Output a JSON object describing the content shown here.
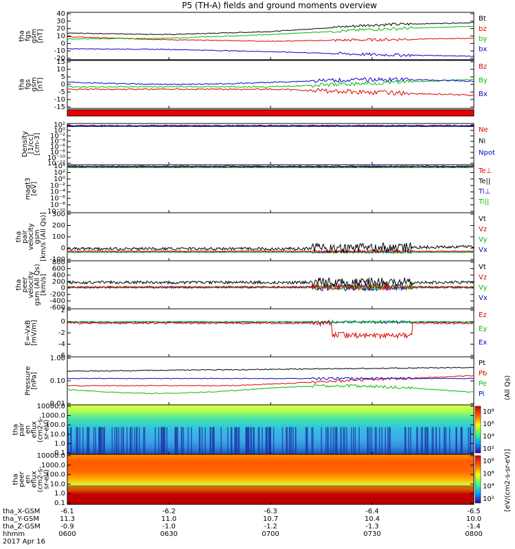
{
  "title": "P5 (TH-A) fields and ground moments overview",
  "panels": [
    {
      "ylabel": [
        "tha",
        "fgs",
        "gsm",
        "[nT]"
      ],
      "yticks": [
        "40",
        "30",
        "20",
        "10",
        "0",
        "-10",
        "-20"
      ],
      "legend": [
        {
          "text": "Bt",
          "color": "#000000"
        },
        {
          "text": "bz",
          "color": "#dd0000"
        },
        {
          "text": "by",
          "color": "#00bb00"
        },
        {
          "text": "bx",
          "color": "#0000cc"
        }
      ]
    },
    {
      "ylabel": [
        "tha",
        "fgs",
        "gsm",
        "[nT]"
      ],
      "yticks": [
        "15",
        "10",
        "5",
        "0",
        "-5",
        "-10",
        "-15"
      ],
      "legend": [
        {
          "text": "Bz",
          "color": "#dd0000"
        },
        {
          "text": "By",
          "color": "#00bb00"
        },
        {
          "text": "Bx",
          "color": "#0000cc"
        }
      ]
    },
    {
      "ylabel": [
        "Density",
        "[1/cc]",
        "[cm-3]"
      ],
      "yticks": [
        "10²",
        "10⁰",
        "10⁻²",
        "10⁻⁴",
        "10⁻⁶",
        "10⁻⁸",
        "10⁻¹⁰",
        "10⁻¹²"
      ],
      "legend": [
        {
          "text": "Ne",
          "color": "#dd0000"
        },
        {
          "text": "Ni",
          "color": "#000000"
        },
        {
          "text": "Npot",
          "color": "#0000cc"
        }
      ]
    },
    {
      "ylabel": [
        "magt3",
        "[eV]"
      ],
      "yticks": [
        "10⁴",
        "10²",
        "10⁰",
        "10⁻²",
        "10⁻⁴",
        "10⁻⁶",
        "10⁻⁸",
        "10⁻¹⁰"
      ],
      "legend": [
        {
          "text": "Te⊥",
          "color": "#dd0000"
        },
        {
          "text": "Te||",
          "color": "#000000"
        },
        {
          "text": "Ti⊥",
          "color": "#0000cc"
        },
        {
          "text": "Ti||",
          "color": "#00bb00"
        }
      ]
    },
    {
      "ylabel": [
        "tha",
        "pair",
        "velocity",
        "gsm",
        "[km/s (All Qs)]"
      ],
      "yticks": [
        "300",
        "200",
        "100",
        "0",
        "-100"
      ],
      "legend": [
        {
          "text": "Vt",
          "color": "#000000"
        },
        {
          "text": "Vz",
          "color": "#dd0000"
        },
        {
          "text": "Vy",
          "color": "#00bb00"
        },
        {
          "text": "Vx",
          "color": "#0000cc"
        }
      ]
    },
    {
      "ylabel": [
        "tha",
        "peer",
        "velocity",
        "gsm (All Qs)",
        "[km/s]"
      ],
      "yticks": [
        "800",
        "600",
        "400",
        "200",
        "0",
        "-200",
        "-400",
        "-600"
      ],
      "legend": [
        {
          "text": "Vt",
          "color": "#000000"
        },
        {
          "text": "Vz",
          "color": "#dd0000"
        },
        {
          "text": "Vy",
          "color": "#00bb00"
        },
        {
          "text": "Vx",
          "color": "#0000cc"
        }
      ]
    },
    {
      "ylabel": [
        "E=-VxB",
        "[mV/m]"
      ],
      "yticks": [
        "2",
        "0",
        "-2",
        "-4",
        "-6"
      ],
      "legend": [
        {
          "text": "Ez",
          "color": "#dd0000"
        },
        {
          "text": "Ey",
          "color": "#00bb00"
        },
        {
          "text": "Ex",
          "color": "#0000cc"
        }
      ]
    },
    {
      "ylabel": [
        "Pressure",
        "[nPa]"
      ],
      "yticks": [
        "1.00",
        "0.10",
        "0.01"
      ],
      "legend": [
        {
          "text": "Pt",
          "color": "#000000"
        },
        {
          "text": "Pb",
          "color": "#dd0000"
        },
        {
          "text": "Pe",
          "color": "#00bb00"
        },
        {
          "text": "Pi",
          "color": "#0000cc"
        }
      ],
      "extra": "(All Qs)"
    },
    {
      "ylabel": [
        "tha",
        "pair",
        "en",
        "eflux",
        "(cm2-s-",
        "sr-eV)"
      ],
      "yticks": [
        "10000.0",
        "1000.0",
        "100.0",
        "10.0",
        "1.0",
        "0.1"
      ],
      "colorbar": [
        "10⁸",
        "10⁶",
        "10⁴",
        "10²"
      ]
    },
    {
      "ylabel": [
        "tha",
        "peer",
        "en",
        "eflux",
        "(cm2-s-",
        "sr-eV)"
      ],
      "yticks": [
        "10000.0",
        "1000.0",
        "100.0",
        "10.0",
        "1.0",
        "0.1"
      ],
      "colorbar": [
        "10⁸",
        "10⁶",
        "10⁴",
        "10²"
      ]
    }
  ],
  "colorbar_label": "[eV/(cm2-s-sr-eV)]",
  "footer": {
    "row_labels": [
      "tha_X-GSM",
      "tha_Y-GSM",
      "tha_Z-GSM",
      "hhmm",
      "2017 Apr 16"
    ],
    "columns": [
      {
        "values": [
          "-6.1",
          "11.3",
          "-0.9",
          "0600"
        ]
      },
      {
        "values": [
          "-6.2",
          "11.0",
          "-1.0",
          "0630"
        ]
      },
      {
        "values": [
          "-6.3",
          "10.7",
          "-1.2",
          "0700"
        ]
      },
      {
        "values": [
          "-6.4",
          "10.4",
          "-1.3",
          "0730"
        ]
      },
      {
        "values": [
          "-6.5",
          "10.0",
          "-1.4",
          "0800"
        ]
      }
    ]
  },
  "chart_data": {
    "type": "line",
    "x": [
      "0600",
      "0630",
      "0700",
      "0730",
      "0800"
    ],
    "xlabel": "hhmm",
    "series": [
      {
        "name": "Bt",
        "values": [
          14,
          12,
          16,
          25,
          28
        ]
      },
      {
        "name": "bz",
        "values": [
          9,
          5,
          3,
          5,
          7
        ]
      },
      {
        "name": "by",
        "values": [
          6,
          7,
          12,
          19,
          23
        ]
      },
      {
        "name": "bx",
        "values": [
          -7,
          -8,
          -11,
          -15,
          -17
        ]
      }
    ],
    "ylim": [
      -20,
      40
    ]
  }
}
